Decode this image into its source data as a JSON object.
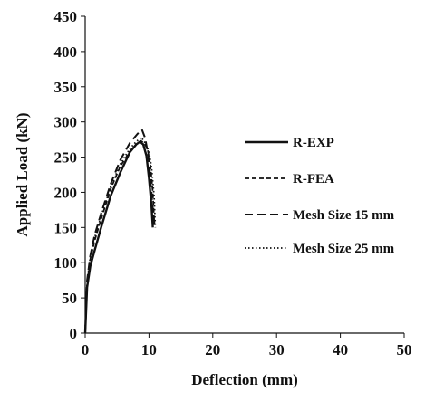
{
  "chart_data": {
    "type": "line",
    "title": "",
    "xlabel": "Deflection (mm)",
    "ylabel": "Applied Load (kN)",
    "xlim": [
      0,
      50
    ],
    "ylim": [
      0,
      450
    ],
    "xticks": [
      0,
      10,
      20,
      30,
      40,
      50
    ],
    "yticks": [
      0,
      50,
      100,
      150,
      200,
      250,
      300,
      350,
      400,
      450
    ],
    "x_tick_labels": [
      "0",
      "10",
      "20",
      "30",
      "40",
      "50"
    ],
    "y_tick_labels": [
      "0",
      "50",
      "100",
      "150",
      "200",
      "250",
      "300",
      "350",
      "400",
      "450"
    ],
    "grid": false,
    "legend_position": "right",
    "series": [
      {
        "name": "R-EXP",
        "style": "solid",
        "color": "#111111",
        "x": [
          0,
          0.3,
          0.8,
          1.5,
          2.5,
          4.0,
          5.5,
          7.0,
          8.0,
          8.6,
          9.1,
          9.6,
          10.0,
          10.4,
          10.6
        ],
        "y": [
          0,
          65,
          95,
          118,
          150,
          195,
          228,
          257,
          268,
          272,
          268,
          252,
          220,
          180,
          150
        ]
      },
      {
        "name": "R-FEA",
        "style": "dashed-fine",
        "color": "#111111",
        "x": [
          0,
          0.3,
          0.8,
          1.5,
          2.5,
          4.0,
          5.5,
          7.0,
          8.0,
          8.7,
          9.3,
          9.8,
          10.2,
          10.6,
          10.8
        ],
        "y": [
          0,
          70,
          105,
          132,
          162,
          205,
          237,
          258,
          268,
          273,
          270,
          260,
          240,
          200,
          160
        ]
      },
      {
        "name": "Mesh Size 15 mm",
        "style": "dashed-long",
        "color": "#111111",
        "x": [
          0,
          0.3,
          0.8,
          1.5,
          2.5,
          4.0,
          5.5,
          7.0,
          8.2,
          8.9,
          9.4,
          9.9,
          10.3,
          10.6,
          10.9
        ],
        "y": [
          0,
          75,
          110,
          140,
          170,
          212,
          246,
          270,
          283,
          289,
          277,
          252,
          210,
          175,
          152
        ]
      },
      {
        "name": "Mesh Size 25 mm",
        "style": "dotted",
        "color": "#111111",
        "x": [
          0,
          0.3,
          0.8,
          1.5,
          2.5,
          4.0,
          5.5,
          7.0,
          8.0,
          8.8,
          9.4,
          10.0,
          10.4,
          10.8,
          11.0
        ],
        "y": [
          0,
          72,
          108,
          136,
          166,
          208,
          240,
          262,
          272,
          278,
          270,
          258,
          235,
          195,
          150
        ]
      }
    ]
  }
}
